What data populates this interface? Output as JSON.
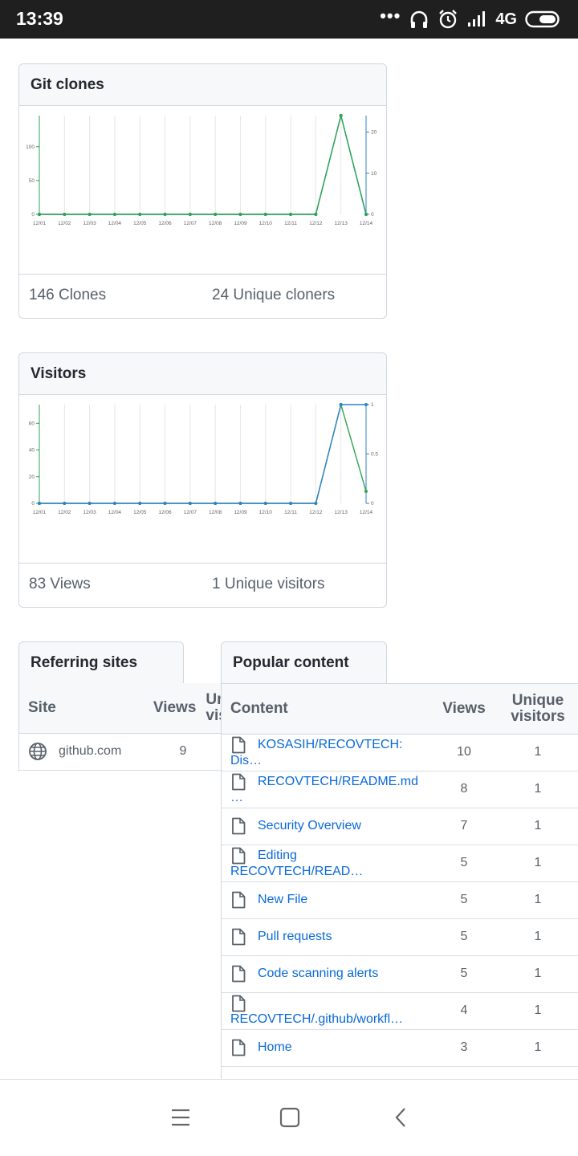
{
  "status_bar": {
    "time": "13:39",
    "network": "4G"
  },
  "clones": {
    "title": "Git clones",
    "clones_stat": "146 Clones",
    "unique_stat": "24 Unique cloners",
    "chart_data": {
      "type": "line",
      "x": [
        "12/01",
        "12/02",
        "12/03",
        "12/04",
        "12/05",
        "12/06",
        "12/07",
        "12/08",
        "12/09",
        "12/10",
        "12/11",
        "12/12",
        "12/13",
        "12/14"
      ],
      "series": [
        {
          "values": [
            0,
            0,
            0,
            0,
            0,
            0,
            0,
            0,
            0,
            0,
            0,
            0,
            146,
            0
          ],
          "color": "#2f81c7"
        },
        {
          "values": [
            0,
            0,
            0,
            0,
            0,
            0,
            0,
            0,
            0,
            0,
            0,
            0,
            24,
            0
          ],
          "color": "#2da44e"
        }
      ],
      "left_ticks": [
        "0",
        "50",
        "100"
      ],
      "left_ylim": [
        0,
        146
      ],
      "right_ticks": [
        "0",
        "10",
        "20"
      ],
      "right_ylim": [
        0,
        24
      ]
    }
  },
  "visitors": {
    "title": "Visitors",
    "views_stat": "83 Views",
    "unique_stat": "1 Unique visitors",
    "chart_data": {
      "type": "line",
      "x": [
        "12/01",
        "12/02",
        "12/03",
        "12/04",
        "12/05",
        "12/06",
        "12/07",
        "12/08",
        "12/09",
        "12/10",
        "12/11",
        "12/12",
        "12/13",
        "12/14"
      ],
      "series": [
        {
          "values": [
            0,
            0,
            0,
            0,
            0,
            0,
            0,
            0,
            0,
            0,
            0,
            0,
            74,
            9
          ],
          "color": "#2da44e"
        },
        {
          "values": [
            0,
            0,
            0,
            0,
            0,
            0,
            0,
            0,
            0,
            0,
            0,
            0,
            1,
            1
          ],
          "color": "#2f81c7",
          "axis": "right"
        }
      ],
      "left_ticks": [
        "0",
        "20",
        "40",
        "60"
      ],
      "left_ylim": [
        0,
        74
      ],
      "right_ticks": [
        "0",
        "0.5",
        "1"
      ],
      "right_ylim": [
        0,
        1
      ]
    }
  },
  "referring": {
    "title": "Referring sites",
    "headers": {
      "site": "Site",
      "views": "Views",
      "unique": "Unique visitors"
    },
    "rows": [
      {
        "site": "github.com",
        "views": "9"
      }
    ]
  },
  "popular": {
    "title": "Popular content",
    "headers": {
      "content": "Content",
      "views": "Views",
      "unique_1": "Unique",
      "unique_2": "visitors"
    },
    "rows": [
      {
        "content": "KOSASIH/RECOVTECH: Dis…",
        "views": "10",
        "unique": "1"
      },
      {
        "content": "RECOVTECH/README.md …",
        "views": "8",
        "unique": "1"
      },
      {
        "content": "Security Overview",
        "views": "7",
        "unique": "1"
      },
      {
        "content": "Editing RECOVTECH/READ…",
        "views": "5",
        "unique": "1"
      },
      {
        "content": "New File",
        "views": "5",
        "unique": "1"
      },
      {
        "content": "Pull requests",
        "views": "5",
        "unique": "1"
      },
      {
        "content": "Code scanning alerts",
        "views": "5",
        "unique": "1"
      },
      {
        "content": "RECOVTECH/.github/workfl…",
        "views": "4",
        "unique": "1"
      },
      {
        "content": "Home",
        "views": "3",
        "unique": "1"
      }
    ]
  },
  "navbar": {
    "icons": [
      "menu-icon",
      "home-icon",
      "back-icon"
    ]
  }
}
